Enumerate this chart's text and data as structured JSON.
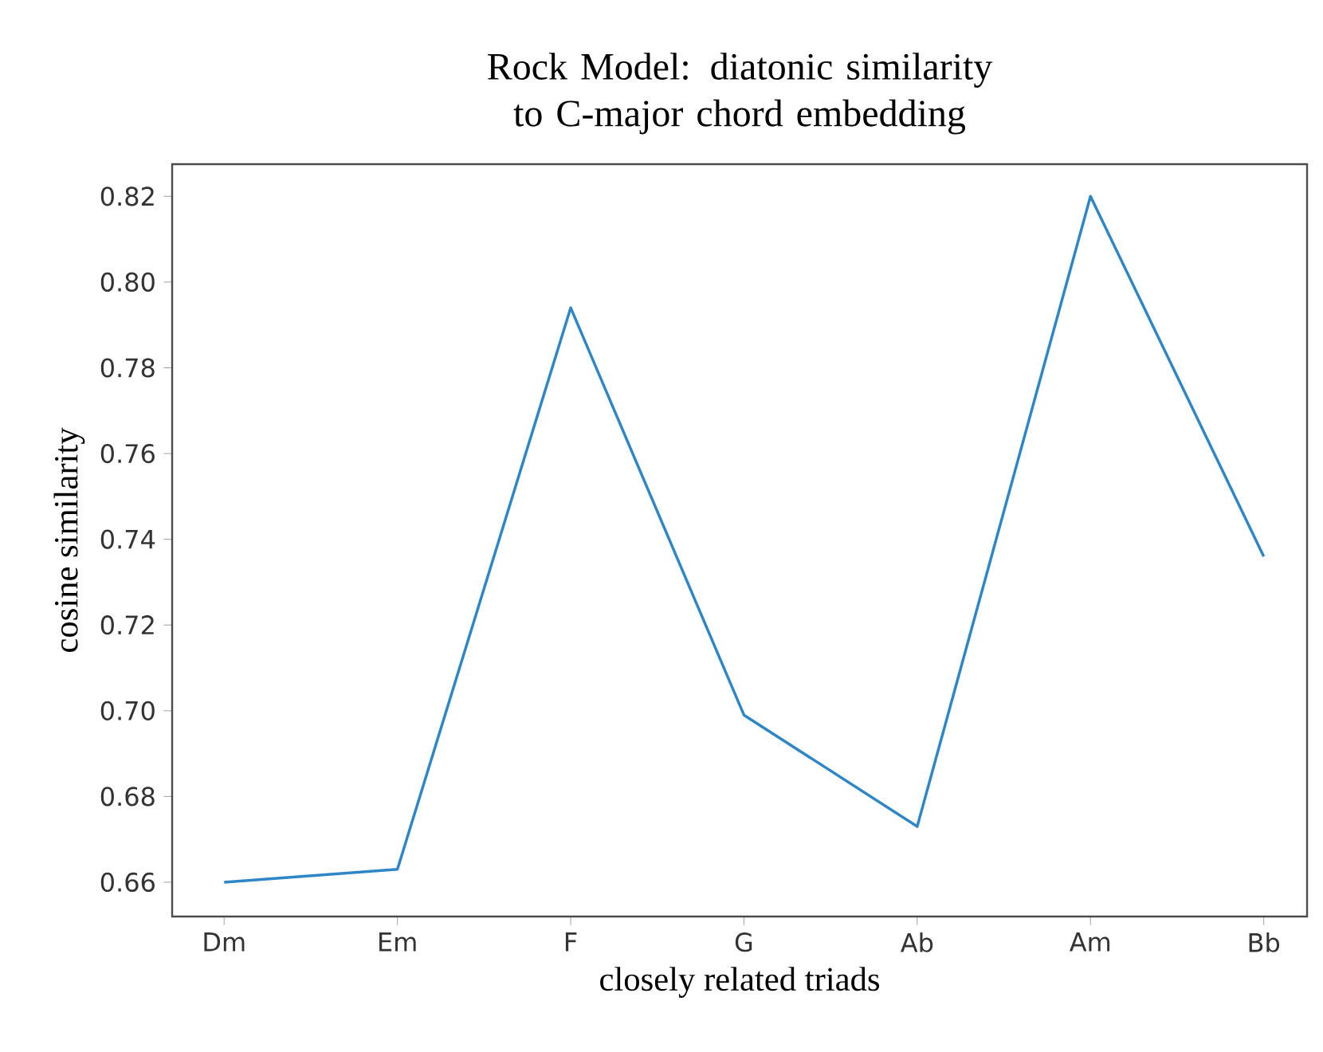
{
  "chart_data": {
    "type": "line",
    "title": "Rock Model: diatonic similarity to C-major chord embedding",
    "xlabel": "closely related triads",
    "ylabel": "cosine similarity",
    "categories": [
      "Dm",
      "Em",
      "F",
      "G",
      "Ab",
      "Am",
      "Bb"
    ],
    "series": [
      {
        "color": "#2f86c6",
        "values": [
          0.66,
          0.663,
          0.794,
          0.699,
          0.673,
          0.82,
          0.736
        ]
      }
    ],
    "ylim": [
      0.652,
      0.8275
    ],
    "yticks": [
      0.66,
      0.68,
      {
        "value": 0.7,
        "label": "0.70"
      },
      0.72,
      0.74,
      0.76,
      0.78,
      {
        "value": 0.8,
        "label": "0.80"
      },
      0.82
    ],
    "marker": "none",
    "line_style": "solid"
  }
}
